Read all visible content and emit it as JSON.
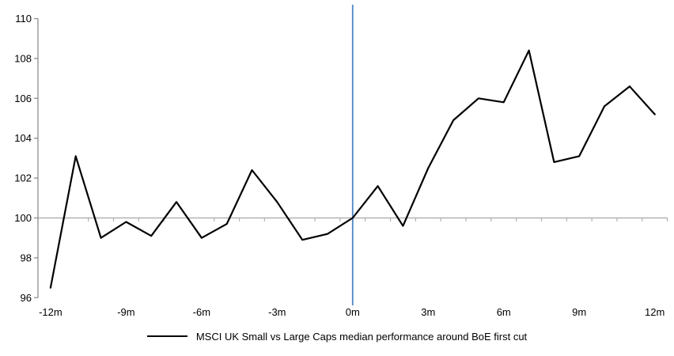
{
  "legend": {
    "label": "MSCI UK Small vs Large Caps median performance around BoE first cut",
    "swatch_color": "#000000"
  },
  "chart_data": {
    "type": "line",
    "title": "",
    "xlabel": "",
    "ylabel": "",
    "x_months": [
      -12,
      -11,
      -10,
      -9,
      -8,
      -7,
      -6,
      -5,
      -4,
      -3,
      -2,
      -1,
      0,
      1,
      2,
      3,
      4,
      5,
      6,
      7,
      8,
      9,
      10,
      11,
      12
    ],
    "x_axis_tick_labels": [
      "-12m",
      "-9m",
      "-6m",
      "-3m",
      "0m",
      "3m",
      "6m",
      "9m",
      "12m"
    ],
    "x_label_every_months": 3,
    "y_ticks": [
      96,
      98,
      100,
      102,
      104,
      106,
      108,
      110
    ],
    "ylim": [
      96,
      110
    ],
    "baseline_value": 100,
    "event_line_month": 0,
    "grid": "baseline-only",
    "legend_position": "bottom",
    "series": [
      {
        "name": "MSCI UK Small vs Large Caps median performance around BoE first cut",
        "values": [
          96.5,
          103.1,
          99.0,
          99.8,
          99.1,
          100.8,
          99.0,
          99.7,
          102.4,
          100.8,
          98.9,
          99.2,
          100.0,
          101.6,
          99.6,
          102.5,
          104.9,
          106.0,
          105.8,
          108.4,
          102.8,
          103.1,
          105.6,
          106.6,
          105.2
        ]
      }
    ],
    "colors": {
      "series": "#000000",
      "axis": "#969696",
      "baseline": "#b3b3b3",
      "event_line": "#4f86c6"
    }
  }
}
